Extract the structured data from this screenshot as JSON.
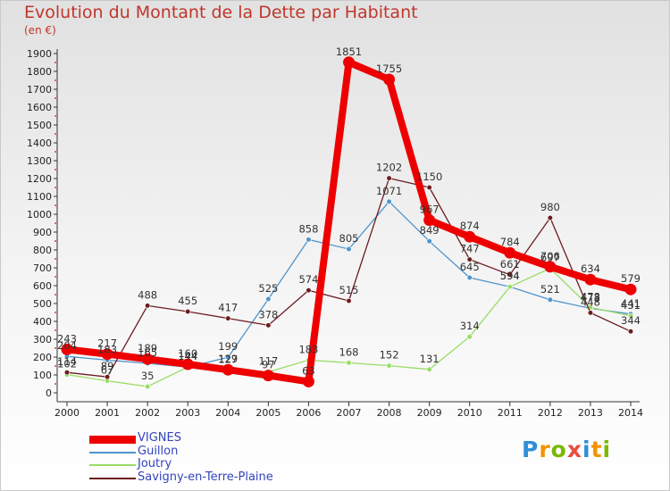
{
  "header": {
    "title": "Evolution du Montant de la Dette par Habitant",
    "subtitle": "(en €)"
  },
  "logo": {
    "text": "Proxiti",
    "colors": [
      "#2f8fd8",
      "#f39200",
      "#7ab800",
      "#e84c3d"
    ]
  },
  "chart_data": {
    "type": "line",
    "title": "Evolution du Montant de la Dette par Habitant",
    "ylabel": "(en €)",
    "x": [
      2000,
      2001,
      2002,
      2003,
      2004,
      2005,
      2006,
      2007,
      2008,
      2009,
      2010,
      2011,
      2012,
      2013,
      2014
    ],
    "ylim": [
      0,
      1900
    ],
    "yticks": [
      0,
      100,
      200,
      300,
      400,
      500,
      600,
      700,
      800,
      900,
      1000,
      1100,
      1200,
      1300,
      1400,
      1500,
      1600,
      1700,
      1800,
      1900
    ],
    "grid": false,
    "legend_position": "bottom-left",
    "series": [
      {
        "name": "VIGNES",
        "color": "#ee0000",
        "thick": true,
        "values": [
          243,
          217,
          189,
          160,
          129,
          97,
          63,
          1851,
          1755,
          967,
          874,
          784,
          706,
          634,
          579
        ]
      },
      {
        "name": "Guillon",
        "color": "#4f94cd",
        "thick": false,
        "values": [
          204,
          183,
          165,
          144,
          199,
          525,
          858,
          805,
          1071,
          849,
          645,
          594,
          521,
          473,
          441
        ]
      },
      {
        "name": "Joutry",
        "color": "#99dd66",
        "thick": false,
        "values": [
          102,
          67,
          35,
          144,
          127,
          117,
          183,
          168,
          152,
          131,
          314,
          594,
          697,
          478,
          431
        ]
      },
      {
        "name": "Savigny-en-Terre-Plaine",
        "color": "#6e1c20",
        "thick": false,
        "values": [
          114,
          89,
          488,
          455,
          417,
          378,
          574,
          515,
          1202,
          1150,
          747,
          661,
          980,
          448,
          344
        ]
      }
    ]
  }
}
